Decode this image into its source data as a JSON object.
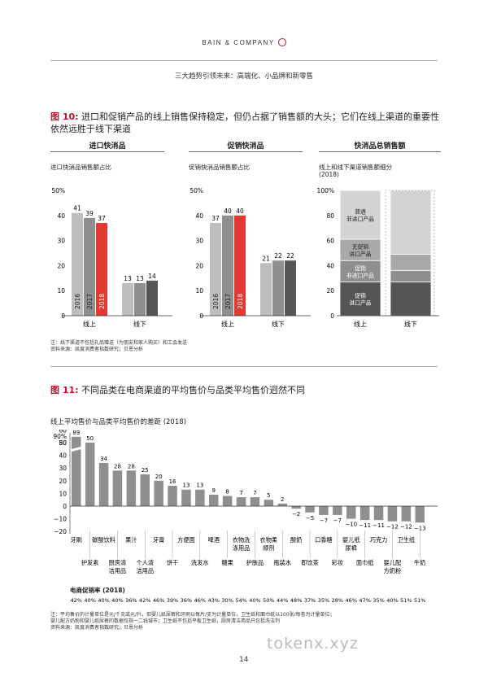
{
  "header": {
    "brand": "BAIN & COMPANY",
    "subtitle": "三大趋势引领未来：高端化、小品牌和新零售"
  },
  "figure10": {
    "number": "图 10:",
    "title": "进口和促销产品的线上销售保持稳定，但仍占据了销售额的大头；它们在线上渠道的重要性依然远胜于线下渠道",
    "panel1": {
      "heading": "进口快消品",
      "subheading": "进口快消品销售额占比"
    },
    "panel2": {
      "heading": "促销快消品",
      "subheading": "促销快消品销售额占比"
    },
    "panel3": {
      "heading": "快消品总销售额",
      "subheading": "线上和线下渠道销售额细分",
      "year": "(2018)"
    },
    "notes": [
      "注：线下渠道不包括礼品赠送（为朋友和家人购买）和工会发送",
      "资料来源：凯度消费者指数研究；贝恩分析"
    ]
  },
  "figure11": {
    "number": "图 11:",
    "title": "不同品类在电商渠道的平均售价与品类平均售价迥然不同",
    "chart_title": "线上平均售价与品类平均售价的差距 (2018)",
    "rate_label": "电商促销率 (2018)",
    "notes": [
      "注：平均售价的计量单位是元/千克或元/升，但婴儿纸尿裤和牙刷以每片/支为计量单位，卫生纸和面巾纸以100张/每卷为计量单位；",
      "婴儿配方奶粉和婴儿纸尿裤的数据仅指一二线城市；卫生纸不包括平板卫生纸，厨房清洁用品只包括洗洁剂",
      "资料来源：凯度消费者指数研究；贝恩分析"
    ]
  },
  "page_number": "14",
  "watermark": "tokenx.xyz",
  "colors": {
    "red": "#e03a32",
    "dark": "#555555",
    "mid": "#8f8f8f",
    "light": "#bdbdbd",
    "brand": "#c8102e"
  },
  "chart_data": [
    {
      "type": "bar",
      "title": "进口快消品销售额占比",
      "categories": [
        "线上",
        "线下"
      ],
      "series": [
        {
          "name": "2016",
          "values": [
            41,
            13
          ]
        },
        {
          "name": "2017",
          "values": [
            39,
            13
          ]
        },
        {
          "name": "2018",
          "values": [
            37,
            14
          ]
        }
      ],
      "yticks": [
        "0",
        "10",
        "20",
        "30",
        "40",
        "50%"
      ],
      "ylim": [
        0,
        50
      ]
    },
    {
      "type": "bar",
      "title": "促销快消品销售额占比",
      "categories": [
        "线上",
        "线下"
      ],
      "series": [
        {
          "name": "2016",
          "values": [
            37,
            21
          ]
        },
        {
          "name": "2017",
          "values": [
            40,
            22
          ]
        },
        {
          "name": "2018",
          "values": [
            40,
            22
          ]
        }
      ],
      "yticks": [
        "0",
        "10",
        "20",
        "30",
        "40",
        "50%"
      ],
      "ylim": [
        0,
        50
      ]
    },
    {
      "type": "bar",
      "stacked": true,
      "title": "线上和线下渠道销售额细分 (2018)",
      "categories": [
        "线上",
        "线下"
      ],
      "series": [
        {
          "name": "促销\n进口产品",
          "values": [
            27,
            27
          ]
        },
        {
          "name": "促销\n非进口产品",
          "values": [
            17,
            9
          ]
        },
        {
          "name": "无促销\n进口产品",
          "values": [
            17,
            13
          ]
        },
        {
          "name": "普通\n非进口产品",
          "values": [
            39,
            51
          ]
        }
      ],
      "yticks": [
        "0",
        "20",
        "40",
        "60",
        "80",
        "100%"
      ],
      "ylim": [
        0,
        100
      ]
    },
    {
      "type": "bar",
      "title": "线上平均售价与品类平均售价的差距 (2018)",
      "categories": [
        "牙刷",
        "护发素",
        "碳酸饮料",
        "厨房清洁用品",
        "果汁",
        "个人清洁用品",
        "牙膏",
        "饼干",
        "方便面",
        "洗发水",
        "啤酒",
        "糖果",
        "衣物洗涤用品",
        "护肤品",
        "衣物柔顺剂",
        "瓶装水",
        "酸奶",
        "即饮茶",
        "口香糖",
        "彩妆",
        "婴儿纸尿裤",
        "面巾纸",
        "巧克力",
        "婴儿配方奶粉",
        "卫生纸",
        "牛奶"
      ],
      "values": [
        89,
        50,
        34,
        28,
        28,
        25,
        20,
        16,
        13,
        13,
        9,
        8,
        7,
        7,
        5,
        2,
        -2,
        -5,
        -7,
        -7,
        -10,
        -11,
        -11,
        -12,
        -12,
        -13
      ],
      "value_labels": [
        "89",
        "50",
        "34",
        "28",
        "28",
        "25",
        "20",
        "16",
        "13",
        "13",
        "9",
        "8",
        "7",
        "7",
        "5",
        "2",
        "−2",
        "−5",
        "−7",
        "−7",
        "−10",
        "−11",
        "−11",
        "−12",
        "−12",
        "−13"
      ],
      "ecommerce_promo_rate": [
        "42%",
        "40%",
        "40%",
        "40%",
        "36%",
        "42%",
        "46%",
        "39%",
        "36%",
        "46%",
        "43%",
        "30%",
        "54%",
        "40%",
        "50%",
        "44%",
        "48%",
        "37%",
        "35%",
        "28%",
        "46%",
        "47%",
        "35%",
        "40%",
        "51%",
        "51%"
      ],
      "yticks": [
        "−20",
        "−10",
        "0",
        "10",
        "20",
        "30",
        "40",
        "50",
        "60",
        "80",
        "90%"
      ],
      "ylim": [
        -20,
        90
      ],
      "axis_break": true
    }
  ]
}
